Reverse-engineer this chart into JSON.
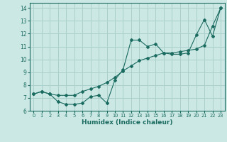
{
  "title": "",
  "xlabel": "Humidex (Indice chaleur)",
  "ylabel": "",
  "bg_color": "#cce8e4",
  "grid_color": "#aad0cc",
  "line_color": "#1a6b60",
  "spine_color": "#1a6b60",
  "xlim": [
    -0.5,
    23.5
  ],
  "ylim": [
    6.0,
    14.4
  ],
  "yticks": [
    6,
    7,
    8,
    9,
    10,
    11,
    12,
    13,
    14
  ],
  "xticks": [
    0,
    1,
    2,
    3,
    4,
    5,
    6,
    7,
    8,
    9,
    10,
    11,
    12,
    13,
    14,
    15,
    16,
    17,
    18,
    19,
    20,
    21,
    22,
    23
  ],
  "series1_x": [
    0,
    1,
    2,
    3,
    4,
    5,
    6,
    7,
    8,
    9,
    10,
    11,
    12,
    13,
    14,
    15,
    16,
    17,
    18,
    19,
    20,
    21,
    22,
    23
  ],
  "series1_y": [
    7.3,
    7.5,
    7.3,
    6.7,
    6.5,
    6.5,
    6.6,
    7.1,
    7.2,
    6.6,
    8.4,
    9.2,
    11.5,
    11.5,
    11.0,
    11.2,
    10.5,
    10.4,
    10.4,
    10.5,
    11.9,
    13.1,
    11.8,
    14.0
  ],
  "series2_x": [
    0,
    1,
    2,
    3,
    4,
    5,
    6,
    7,
    8,
    9,
    10,
    11,
    12,
    13,
    14,
    15,
    16,
    17,
    18,
    19,
    20,
    21,
    22,
    23
  ],
  "series2_y": [
    7.3,
    7.5,
    7.3,
    7.2,
    7.2,
    7.2,
    7.5,
    7.7,
    7.9,
    8.2,
    8.6,
    9.1,
    9.5,
    9.9,
    10.1,
    10.3,
    10.5,
    10.5,
    10.6,
    10.7,
    10.8,
    11.1,
    12.6,
    14.0
  ]
}
